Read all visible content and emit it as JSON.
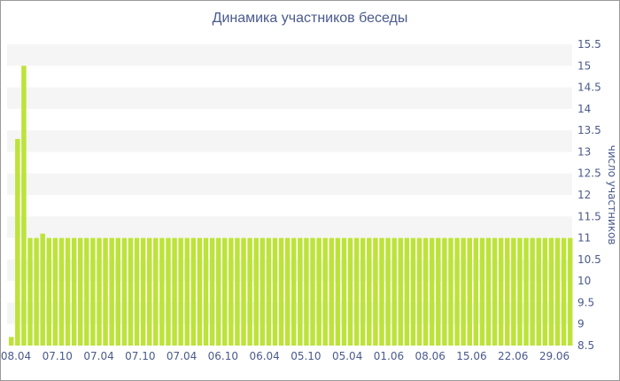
{
  "chart_data": {
    "type": "bar",
    "title": "Динамика участников беседы",
    "xlabel": "",
    "ylabel": "число участников",
    "ylim": [
      8.5,
      15.5
    ],
    "y_axis_position": "right",
    "y_ticks": [
      "8.5",
      "9",
      "9.5",
      "10",
      "10.5",
      "11",
      "11.5",
      "12",
      "12.5",
      "13",
      "13.5",
      "14",
      "14.5",
      "15",
      "15.5"
    ],
    "x_tick_labels": [
      "08.04",
      "07.10",
      "07.04",
      "07.10",
      "07.04",
      "06.10",
      "06.04",
      "05.10",
      "05.04",
      "01.06",
      "08.06",
      "15.06",
      "22.06",
      "29.06"
    ],
    "bar_color": "#bde33a",
    "grid_band_color": "#f5f5f5",
    "values": [
      8.7,
      13.3,
      15,
      11,
      11,
      11.1,
      11,
      11,
      11,
      11,
      11,
      11,
      11,
      11,
      11,
      11,
      11,
      11,
      11,
      11,
      11,
      11,
      11,
      11,
      11,
      11,
      11,
      11,
      11,
      11,
      11,
      11,
      11,
      11,
      11,
      11,
      11,
      11,
      11,
      11,
      11,
      11,
      11,
      11,
      11,
      11,
      11,
      11,
      11,
      11,
      11,
      11,
      11,
      11,
      11,
      11,
      11,
      11,
      11,
      11,
      11,
      11,
      11,
      11,
      11,
      11,
      11,
      11,
      11,
      11,
      11,
      11,
      11,
      11,
      11,
      11,
      11,
      11,
      11,
      11,
      11,
      11,
      11,
      11,
      11,
      11,
      11,
      11,
      11,
      11
    ]
  }
}
